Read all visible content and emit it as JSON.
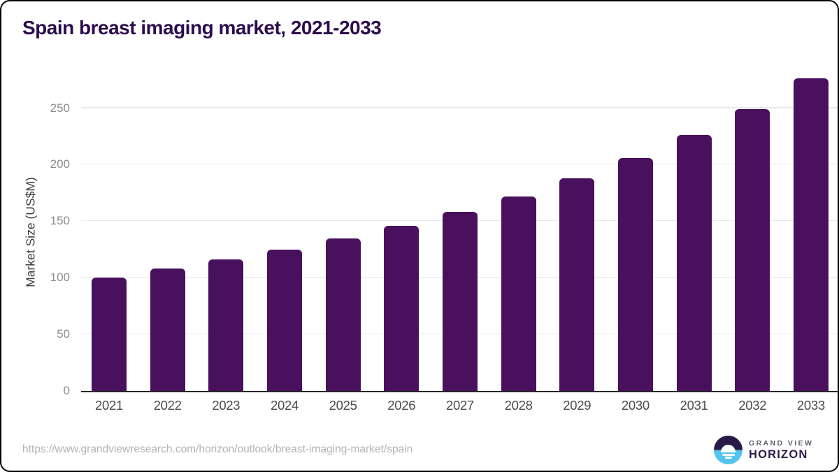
{
  "chart_data": {
    "type": "bar",
    "title": "Spain breast imaging market, 2021-2033",
    "categories": [
      "2021",
      "2022",
      "2023",
      "2024",
      "2025",
      "2026",
      "2027",
      "2028",
      "2029",
      "2030",
      "2031",
      "2032",
      "2033"
    ],
    "values": [
      100,
      108,
      116,
      125,
      135,
      146,
      158,
      172,
      188,
      206,
      226,
      249,
      276
    ],
    "xlabel": "",
    "ylabel": "Market Size (US$M)",
    "ylim": [
      0,
      280
    ],
    "yticks": [
      0,
      50,
      100,
      150,
      200,
      250
    ],
    "grid": true,
    "legend": "none",
    "bar_color": "#49105e"
  },
  "footer": {
    "source_url": "https://www.grandviewresearch.com/horizon/outlook/breast-imaging-market/spain",
    "logo": {
      "brand_top": "GRAND VIEW",
      "brand_bottom": "HORIZON"
    }
  },
  "colors": {
    "bar": "#49105e",
    "title_text": "#2d0c4c",
    "logo_dark_purple": "#2b1a47",
    "logo_light_blue": "#55c3f0",
    "gridline": "#e8e8e8",
    "axis_line": "#262626",
    "tick_text": "#8c8c8c",
    "x_label_text": "#4c4c4c",
    "url_text": "#b3b3b3"
  }
}
